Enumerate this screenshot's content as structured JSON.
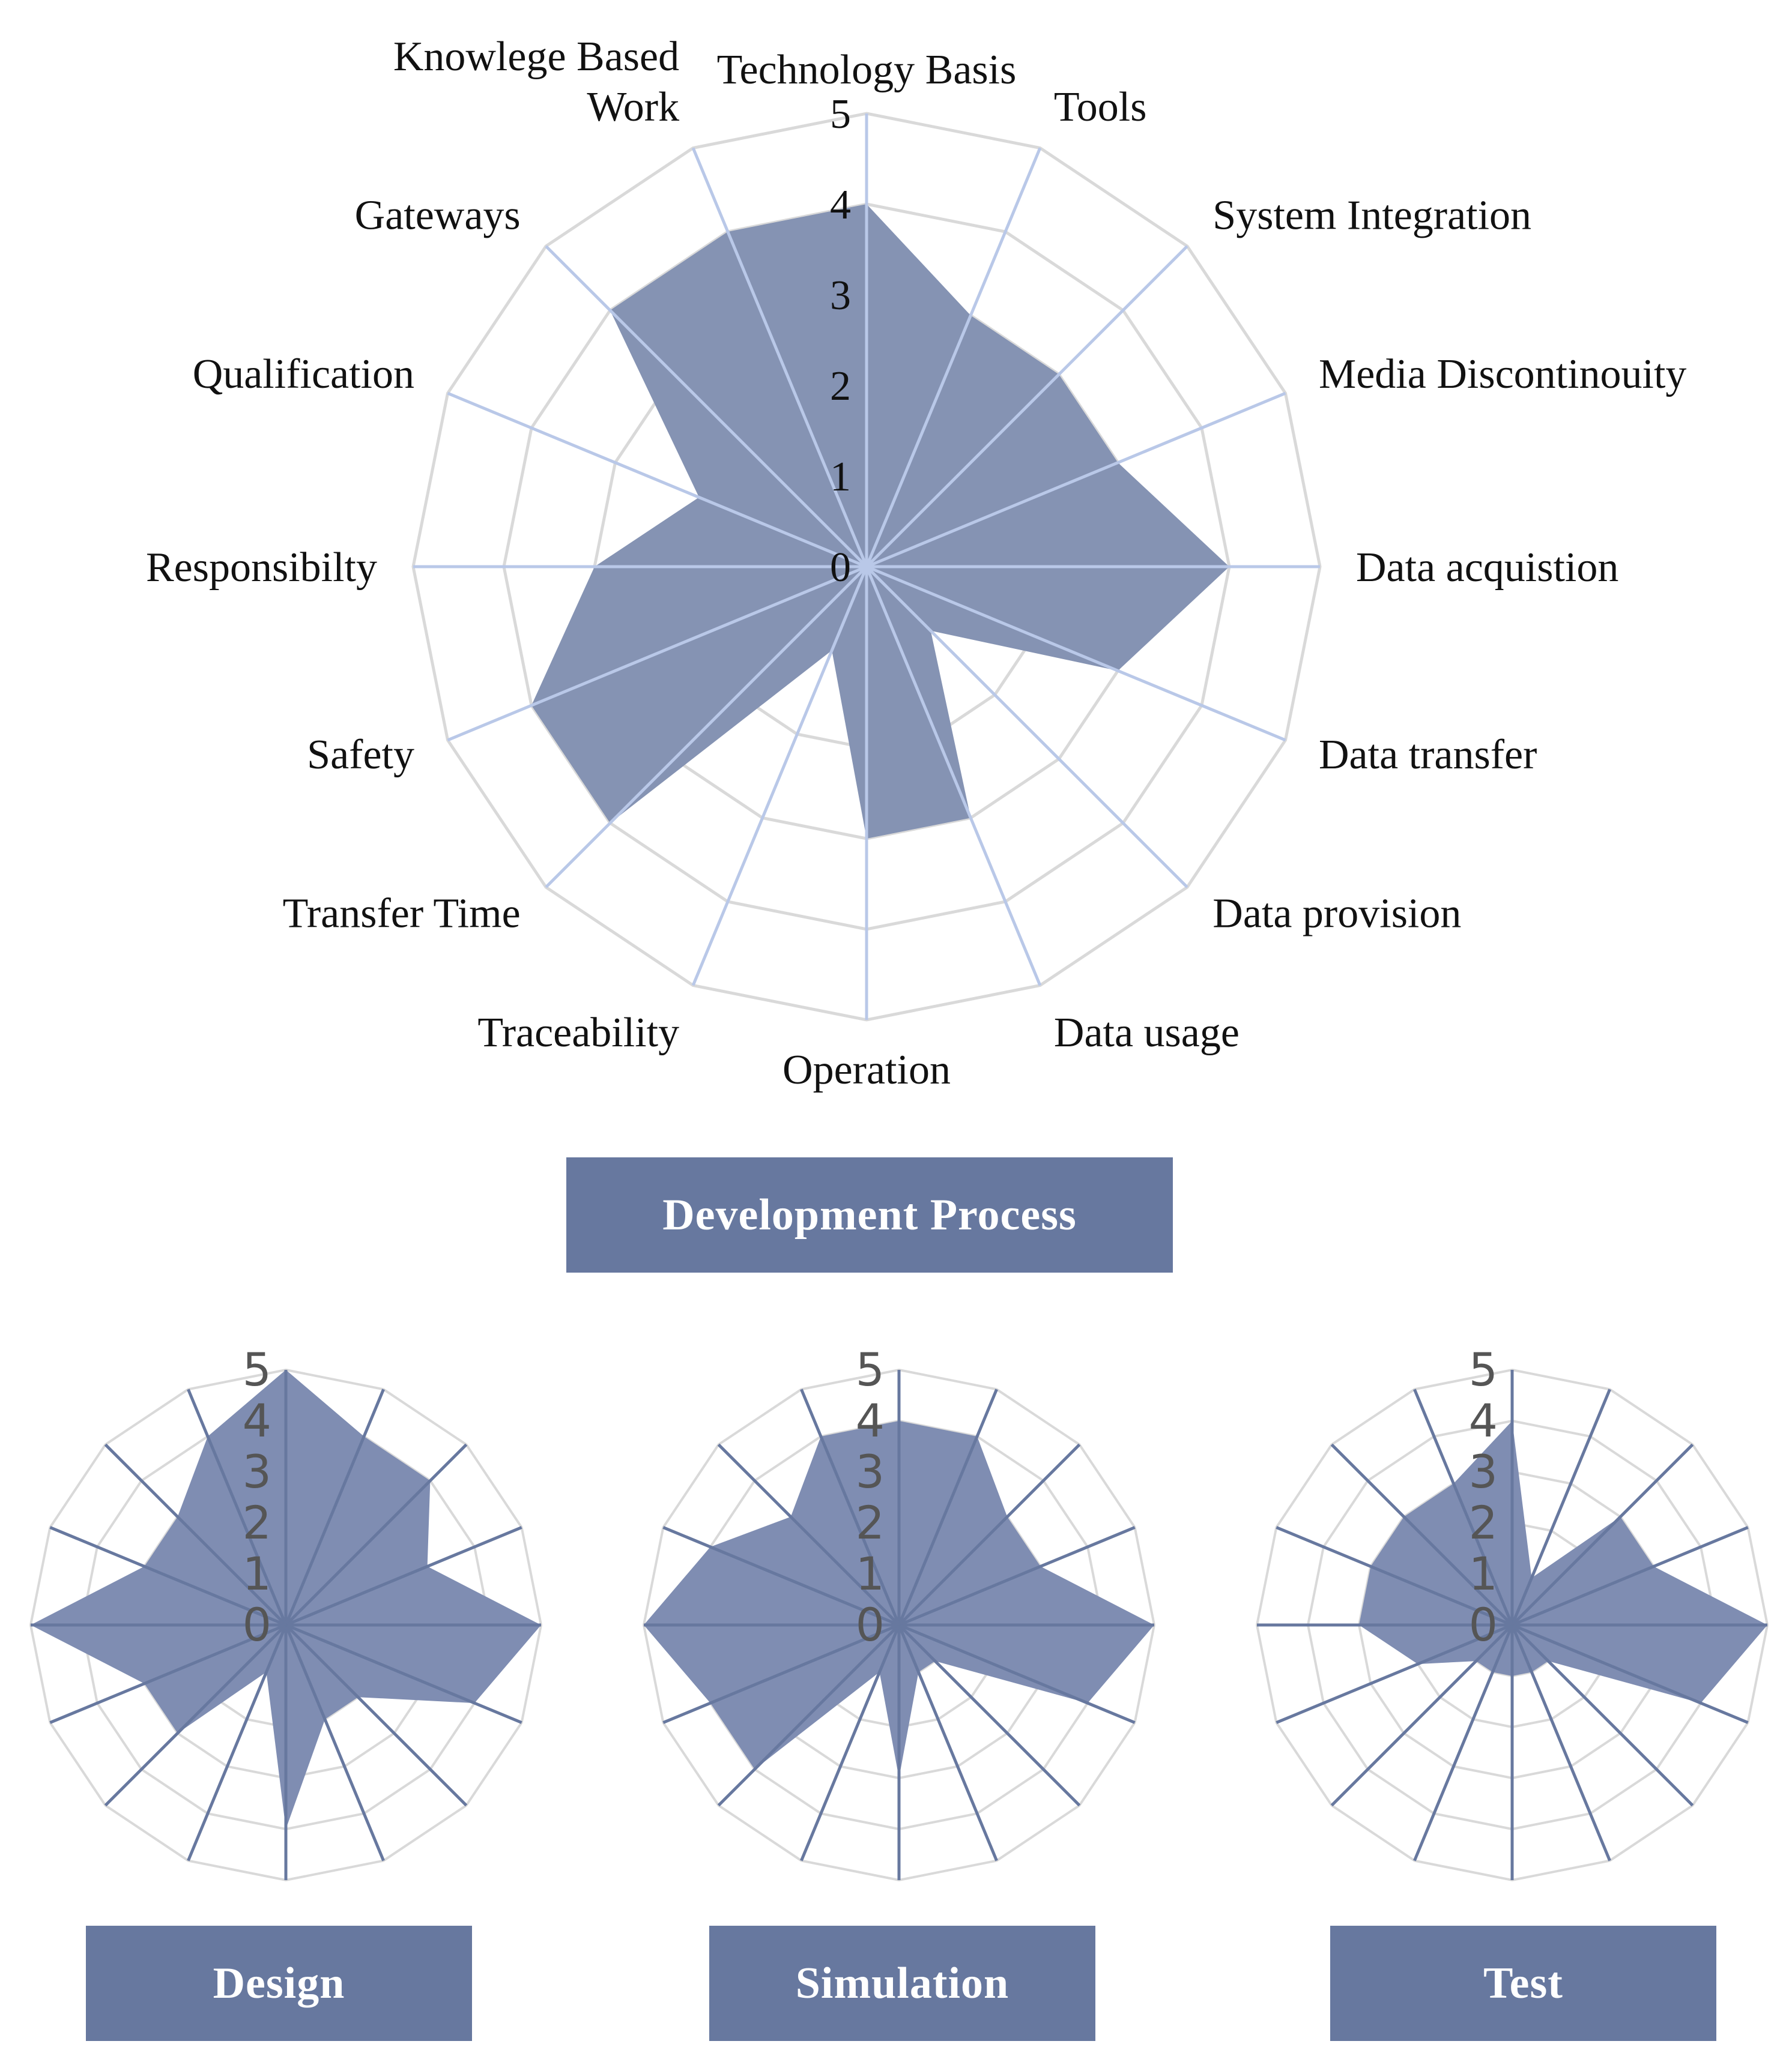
{
  "chart_data": [
    {
      "type": "radar",
      "title": "Development Process",
      "categories": [
        "Technology Basis",
        "Tools",
        "System Integration",
        "Media Discontinouity",
        "Data acquistion",
        "Data transfer",
        "Data provision",
        "Data usage",
        "Operation",
        "Traceability",
        "Transfer Time",
        "Safety",
        "Responsibilty",
        "Qualification",
        "Gateways",
        "Knowlege Based Work"
      ],
      "label_lines": [
        [
          "Technology Basis"
        ],
        [
          "Tools"
        ],
        [
          "System Integration"
        ],
        [
          "Media Discontinouity"
        ],
        [
          "Data acquistion"
        ],
        [
          "Data transfer"
        ],
        [
          "Data provision"
        ],
        [
          "Data usage"
        ],
        [
          "Operation"
        ],
        [
          "Traceability"
        ],
        [
          "Transfer Time"
        ],
        [
          "Safety"
        ],
        [
          "Responsibilty"
        ],
        [
          "Qualification"
        ],
        [
          "Gateways"
        ],
        [
          "Knowlege Based",
          "Work"
        ]
      ],
      "values": [
        4,
        3,
        3,
        3,
        4,
        3,
        1,
        3,
        3,
        1,
        4,
        4,
        3,
        2,
        4,
        4
      ],
      "rlim": [
        0,
        5
      ],
      "ticks": [
        "0",
        "1",
        "2",
        "3",
        "4",
        "5"
      ],
      "fill_color": "#8593b3",
      "spoke_color": "#b9c8e8",
      "grid_color": "#d9d9d9"
    },
    {
      "type": "radar",
      "title": "Design",
      "values": [
        5,
        4,
        4,
        3,
        5,
        4,
        2,
        2,
        4,
        1,
        3,
        3,
        5,
        3,
        3,
        4
      ],
      "rlim": [
        0,
        5
      ],
      "ticks": [
        "0",
        "1",
        "2",
        "3",
        "4",
        "5"
      ],
      "fill_color": "#7f8db2",
      "spoke_color": "#67789f",
      "grid_color": "#d9d9d9"
    },
    {
      "type": "radar",
      "title": "Simulation",
      "values": [
        4,
        4,
        3,
        3,
        5,
        4,
        1,
        1,
        3,
        1,
        4,
        4,
        5,
        4,
        3,
        4
      ],
      "rlim": [
        0,
        5
      ],
      "ticks": [
        "0",
        "1",
        "2",
        "3",
        "4",
        "5"
      ],
      "fill_color": "#7f8db2",
      "spoke_color": "#67789f",
      "grid_color": "#d9d9d9"
    },
    {
      "type": "radar",
      "title": "Test",
      "values": [
        4,
        1,
        3,
        3,
        5,
        4,
        1,
        1,
        1,
        1,
        1,
        2,
        3,
        3,
        3,
        3
      ],
      "rlim": [
        0,
        5
      ],
      "ticks": [
        "0",
        "1",
        "2",
        "3",
        "4",
        "5"
      ],
      "fill_color": "#7f8db2",
      "spoke_color": "#67789f",
      "grid_color": "#d9d9d9"
    }
  ]
}
